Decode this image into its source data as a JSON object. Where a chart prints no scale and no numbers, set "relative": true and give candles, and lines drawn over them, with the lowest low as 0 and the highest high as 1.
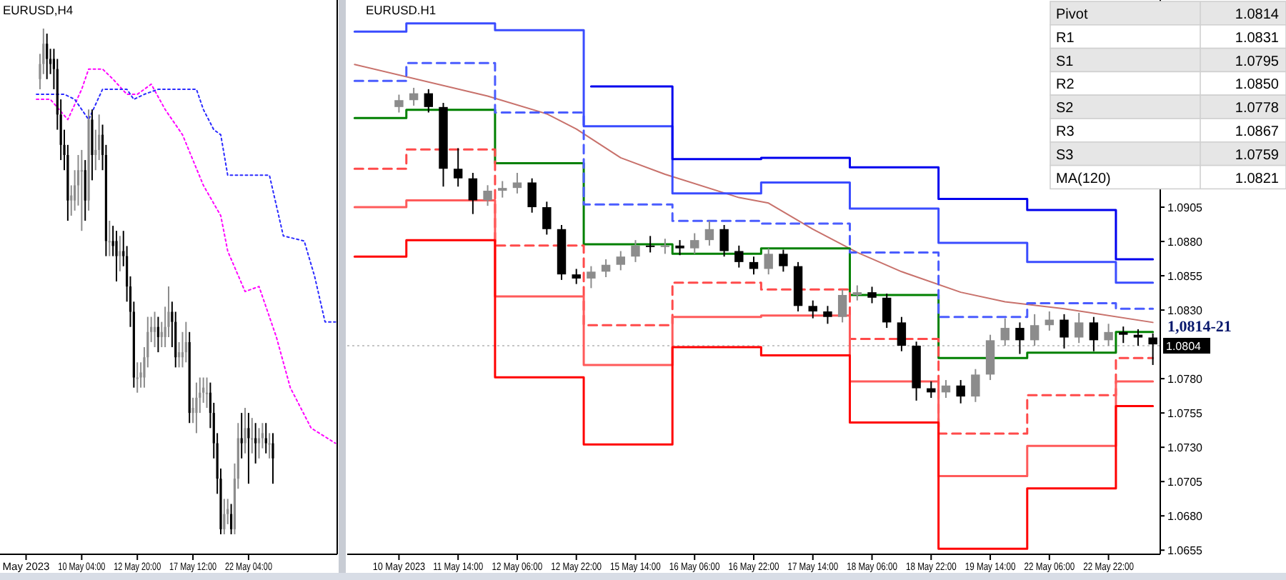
{
  "chart_data": [
    {
      "type": "candlestick",
      "title": "EURUSD,H4",
      "relative": true,
      "tick_labels": "x",
      "categories": [
        null,
        null,
        null,
        null,
        null,
        null,
        null,
        "May 2023",
        null,
        null,
        null,
        null,
        null,
        null,
        null,
        null,
        null,
        null,
        null,
        null,
        null,
        null,
        null,
        "10 May 04:00",
        null,
        null,
        null,
        null,
        null,
        null,
        null,
        null,
        null,
        null,
        null,
        null,
        null,
        null,
        null,
        "12 May 20:00",
        null,
        null,
        null,
        null,
        null,
        null,
        null,
        null,
        null,
        null,
        null,
        null,
        null,
        null,
        null,
        "17 May 12:00",
        null,
        null,
        null,
        null,
        null,
        null,
        null,
        null,
        null,
        null,
        null,
        null,
        null,
        null,
        null,
        "22 May 04:00",
        null,
        null,
        null,
        null,
        null,
        null,
        null,
        null,
        null,
        null,
        null,
        null,
        null,
        null,
        null,
        null,
        null,
        null,
        null,
        null,
        null,
        null,
        null,
        null,
        null
      ],
      "ohlc": [
        null,
        null,
        null,
        null,
        null,
        null,
        null,
        null,
        null,
        null,
        null,
        [
          0.9,
          0.95,
          0.88,
          0.93
        ],
        [
          0.93,
          1.0,
          0.91,
          0.97
        ],
        [
          0.97,
          0.99,
          0.9,
          0.94
        ],
        [
          0.94,
          0.96,
          0.91,
          0.93
        ],
        [
          0.94,
          0.96,
          0.88,
          0.92
        ],
        [
          0.92,
          0.94,
          0.8,
          0.83
        ],
        [
          0.83,
          0.86,
          0.74,
          0.77
        ],
        [
          0.77,
          0.8,
          0.72,
          0.75
        ],
        [
          0.75,
          0.77,
          0.62,
          0.66
        ],
        [
          0.66,
          0.69,
          0.63,
          0.67
        ],
        [
          0.66,
          0.72,
          0.64,
          0.69
        ],
        [
          0.69,
          0.75,
          0.65,
          0.72
        ],
        [
          0.72,
          0.76,
          0.6,
          0.72
        ],
        [
          0.72,
          0.74,
          0.62,
          0.66
        ],
        [
          0.66,
          0.84,
          0.64,
          0.82
        ],
        [
          0.82,
          0.84,
          0.7,
          0.75
        ],
        [
          0.75,
          0.8,
          0.72,
          0.76
        ],
        [
          0.76,
          0.83,
          0.74,
          0.79
        ],
        [
          0.79,
          0.81,
          0.72,
          0.75
        ],
        [
          0.75,
          0.77,
          0.55,
          0.58
        ],
        [
          0.58,
          0.62,
          0.55,
          0.58
        ],
        [
          0.58,
          0.61,
          0.55,
          0.57
        ],
        [
          0.58,
          0.6,
          0.5,
          0.55
        ],
        [
          0.55,
          0.59,
          0.52,
          0.56
        ],
        [
          0.56,
          0.6,
          0.53,
          0.55
        ],
        [
          0.55,
          0.57,
          0.46,
          0.49
        ],
        [
          0.49,
          0.51,
          0.41,
          0.44
        ],
        [
          0.44,
          0.46,
          0.29,
          0.31
        ],
        [
          0.31,
          0.34,
          0.28,
          0.31
        ],
        [
          0.31,
          0.34,
          0.29,
          0.32
        ],
        [
          0.31,
          0.37,
          0.29,
          0.35
        ],
        [
          0.35,
          0.43,
          0.33,
          0.4
        ],
        [
          0.4,
          0.43,
          0.38,
          0.41
        ],
        [
          0.4,
          0.44,
          0.37,
          0.41
        ],
        [
          0.41,
          0.43,
          0.36,
          0.39
        ],
        [
          0.39,
          0.42,
          0.37,
          0.4
        ],
        [
          0.39,
          0.45,
          0.37,
          0.41
        ],
        [
          0.41,
          0.49,
          0.39,
          0.44
        ],
        [
          0.44,
          0.46,
          0.37,
          0.42
        ],
        [
          0.42,
          0.44,
          0.33,
          0.35
        ],
        [
          0.35,
          0.38,
          0.33,
          0.36
        ],
        [
          0.35,
          0.4,
          0.33,
          0.36
        ],
        [
          0.36,
          0.42,
          0.34,
          0.38
        ],
        [
          0.38,
          0.4,
          0.22,
          0.24
        ],
        [
          0.24,
          0.27,
          0.22,
          0.25
        ],
        [
          0.24,
          0.3,
          0.2,
          0.27
        ],
        [
          0.27,
          0.31,
          0.24,
          0.28
        ],
        [
          0.28,
          0.31,
          0.26,
          0.29
        ],
        [
          0.28,
          0.31,
          0.25,
          0.28
        ],
        [
          0.28,
          0.3,
          0.21,
          0.24
        ],
        [
          0.24,
          0.26,
          0.15,
          0.18
        ],
        [
          0.18,
          0.2,
          0.08,
          0.11
        ],
        [
          0.11,
          0.13,
          0.0,
          0.01
        ],
        [
          0.01,
          0.07,
          0.0,
          0.04
        ],
        [
          0.04,
          0.07,
          0.02,
          0.05
        ],
        [
          0.04,
          0.06,
          0.0,
          0.01
        ],
        [
          0.01,
          0.14,
          0.0,
          0.11
        ],
        [
          0.11,
          0.22,
          0.09,
          0.19
        ],
        [
          0.19,
          0.24,
          0.15,
          0.18
        ],
        [
          0.18,
          0.25,
          0.16,
          0.21
        ],
        [
          0.21,
          0.24,
          0.1,
          0.19
        ],
        [
          0.19,
          0.23,
          0.16,
          0.19
        ],
        [
          0.19,
          0.22,
          0.14,
          0.18
        ],
        [
          0.18,
          0.21,
          0.15,
          0.19
        ],
        [
          0.19,
          0.22,
          0.17,
          0.2
        ],
        [
          0.19,
          0.22,
          0.16,
          0.18
        ],
        [
          0.18,
          0.2,
          0.15,
          0.18
        ],
        [
          0.18,
          0.2,
          0.1,
          0.15
        ],
        null,
        null,
        null,
        null,
        null,
        null,
        null,
        null,
        null,
        null,
        null,
        null,
        null,
        null,
        null,
        null,
        null,
        null
      ],
      "series": [
        {
          "type": "line",
          "color": "#ff00ff",
          "line_style": "dotted",
          "values": [
            null,
            null,
            null,
            null,
            null,
            null,
            null,
            null,
            null,
            null,
            0.86,
            null,
            null,
            null,
            0.86,
            null,
            null,
            null,
            null,
            0.82,
            null,
            null,
            null,
            0.88,
            null,
            0.92,
            null,
            null,
            null,
            0.92,
            null,
            null,
            0.9,
            null,
            null,
            null,
            0.87,
            null,
            null,
            0.87,
            null,
            null,
            null,
            0.89,
            null,
            null,
            null,
            0.84,
            null,
            null,
            null,
            null,
            0.79,
            null,
            null,
            null,
            null,
            null,
            0.69,
            null,
            null,
            null,
            null,
            0.63,
            null,
            0.56,
            null,
            null,
            null,
            null,
            0.48,
            null,
            null,
            null,
            0.49,
            null,
            null,
            null,
            null,
            0.39,
            null,
            null,
            null,
            0.29,
            null,
            null,
            null,
            null,
            null,
            0.21,
            null,
            null,
            null,
            null,
            null,
            null,
            0.18
          ]
        },
        {
          "type": "line",
          "color": "#2a2aff",
          "line_style": "dotted",
          "values": [
            null,
            null,
            null,
            null,
            null,
            null,
            null,
            null,
            null,
            null,
            0.87,
            null,
            null,
            null,
            null,
            null,
            null,
            null,
            0.87,
            null,
            null,
            0.86,
            null,
            0.84,
            null,
            0.82,
            null,
            null,
            null,
            0.88,
            null,
            null,
            null,
            null,
            null,
            null,
            0.88,
            null,
            0.86,
            null,
            null,
            0.87,
            null,
            null,
            null,
            0.88,
            null,
            null,
            null,
            null,
            null,
            null,
            null,
            null,
            null,
            null,
            0.88,
            null,
            0.84,
            null,
            null,
            0.8,
            null,
            0.79,
            null,
            0.71,
            null,
            null,
            null,
            null,
            null,
            null,
            null,
            null,
            null,
            null,
            null,
            0.71,
            null,
            null,
            null,
            0.59,
            null,
            null,
            null,
            null,
            null,
            0.58,
            null,
            null,
            0.51,
            null,
            null,
            0.42,
            null,
            null,
            0.42
          ]
        }
      ]
    },
    {
      "type": "candlestick",
      "title": "EURUSD.H1",
      "ylim": [
        1.0652,
        1.1056
      ],
      "categories": [
        null,
        null,
        null,
        "10 May 2023",
        null,
        null,
        null,
        "11 May 14:00",
        null,
        null,
        null,
        "12 May 06:00",
        null,
        null,
        null,
        "12 May 22:00",
        null,
        null,
        null,
        "15 May 14:00",
        null,
        null,
        null,
        "16 May 06:00",
        null,
        null,
        null,
        "16 May 22:00",
        null,
        null,
        null,
        "17 May 14:00",
        null,
        null,
        null,
        "18 May 06:00",
        null,
        null,
        null,
        "18 May 22:00",
        null,
        null,
        null,
        "19 May 14:00",
        null,
        null,
        null,
        "22 May 06:00",
        null,
        null,
        null,
        "22 May 22:00",
        null,
        null,
        null
      ],
      "yticks": [
        1.0655,
        {
          "value": 1.068,
          "label": "1.0680"
        },
        1.0705,
        {
          "value": 1.073,
          "label": "1.0730"
        },
        1.0755,
        {
          "value": 1.078,
          "label": "1.0780"
        },
        {
          "value": 1.083,
          "label": "1.0830"
        },
        1.0855,
        {
          "value": 1.088,
          "label": "1.0880"
        },
        1.0905
      ],
      "ref_lines": [
        {
          "axis": "y",
          "value": 1.0804,
          "label": "1.0804",
          "color": "#b4b4b4",
          "line_style": "dotted"
        }
      ],
      "ohlc": [
        null,
        null,
        null,
        [
          1.0978,
          1.0987,
          1.0974,
          1.0983
        ],
        [
          1.0983,
          1.0992,
          1.0979,
          1.0988
        ],
        [
          1.0988,
          1.0991,
          1.0974,
          1.0978
        ],
        [
          1.0978,
          1.0981,
          1.092,
          1.0933
        ],
        [
          1.0933,
          1.0948,
          1.092,
          1.0926
        ],
        [
          1.0926,
          1.093,
          1.09,
          1.091
        ],
        [
          1.091,
          1.0921,
          1.0906,
          1.0917
        ],
        [
          1.0917,
          1.0924,
          1.0912,
          1.0919
        ],
        [
          1.0919,
          1.093,
          1.0915,
          1.0923
        ],
        [
          1.0923,
          1.0926,
          1.0901,
          1.0905
        ],
        [
          1.0905,
          1.0909,
          1.0885,
          1.0889
        ],
        [
          1.0889,
          1.0892,
          1.0852,
          1.0856
        ],
        [
          1.0856,
          1.086,
          1.0849,
          1.0853
        ],
        [
          1.0853,
          1.0862,
          1.0846,
          1.0858
        ],
        [
          1.0858,
          1.0867,
          1.0854,
          1.0863
        ],
        [
          1.0863,
          1.0873,
          1.0859,
          1.0869
        ],
        [
          1.0869,
          1.0881,
          1.0865,
          1.0877
        ],
        [
          1.0877,
          1.0884,
          1.0872,
          1.0876
        ],
        [
          1.0876,
          1.0882,
          1.0871,
          1.0877
        ],
        [
          1.0877,
          1.0881,
          1.087,
          1.0875
        ],
        [
          1.0875,
          1.0886,
          1.0871,
          1.0881
        ],
        [
          1.0881,
          1.0895,
          1.0877,
          1.0889
        ],
        [
          1.0889,
          1.0892,
          1.0869,
          1.0873
        ],
        [
          1.0873,
          1.0877,
          1.0861,
          1.0865
        ],
        [
          1.0865,
          1.0869,
          1.0856,
          1.086
        ],
        [
          1.086,
          1.0875,
          1.0856,
          1.0871
        ],
        [
          1.0871,
          1.0874,
          1.0858,
          1.0862
        ],
        [
          1.0862,
          1.0865,
          1.0829,
          1.0833
        ],
        [
          1.0833,
          1.0837,
          1.0824,
          1.0829
        ],
        [
          1.0829,
          1.0833,
          1.082,
          1.0825
        ],
        [
          1.0825,
          1.0845,
          1.0821,
          1.0841
        ],
        [
          1.0841,
          1.0848,
          1.0837,
          1.0843
        ],
        [
          1.0843,
          1.0847,
          1.0835,
          1.0839
        ],
        [
          1.0839,
          1.0842,
          1.0817,
          1.0821
        ],
        [
          1.0821,
          1.0825,
          1.08,
          1.0804
        ],
        [
          1.0804,
          1.0807,
          1.0764,
          1.0773
        ],
        [
          1.0773,
          1.0778,
          1.0766,
          1.077
        ],
        [
          1.077,
          1.0779,
          1.0766,
          1.0775
        ],
        [
          1.0775,
          1.0779,
          1.0762,
          1.0767
        ],
        [
          1.0767,
          1.0787,
          1.0763,
          1.0783
        ],
        [
          1.0783,
          1.0812,
          1.0779,
          1.0808
        ],
        [
          1.0808,
          1.0824,
          1.0804,
          1.0817
        ],
        [
          1.0817,
          1.0821,
          1.0798,
          1.0808
        ],
        [
          1.0808,
          1.0827,
          1.0804,
          1.0819
        ],
        [
          1.0819,
          1.0829,
          1.0815,
          1.0823
        ],
        [
          1.0823,
          1.0827,
          1.0802,
          1.081
        ],
        [
          1.081,
          1.0828,
          1.0806,
          1.0821
        ],
        [
          1.0821,
          1.0825,
          1.08,
          1.0808
        ],
        [
          1.0808,
          1.082,
          1.0804,
          1.0814
        ],
        [
          1.0814,
          1.0818,
          1.0806,
          1.0812
        ],
        [
          1.0812,
          1.0816,
          1.0804,
          1.081
        ],
        [
          1.081,
          1.0813,
          1.079,
          1.0805
        ]
      ],
      "series": [
        {
          "type": "line",
          "color": "#c8716b",
          "values": [
            1.1009,
            null,
            null,
            null,
            null,
            null,
            null,
            null,
            null,
            1.0986,
            null,
            null,
            null,
            1.0973,
            null,
            1.0962,
            null,
            null,
            1.0941,
            null,
            null,
            1.0929,
            null,
            null,
            null,
            null,
            1.0912,
            null,
            1.0908,
            null,
            null,
            1.0889,
            null,
            null,
            1.0872,
            null,
            null,
            1.0858,
            null,
            null,
            null,
            1.0843,
            null,
            null,
            1.0836,
            null,
            null,
            null,
            1.0831,
            null,
            null,
            null,
            null,
            null,
            1.0821
          ]
        },
        {
          "type": "step",
          "color": "#008000",
          "values": [
            1.097,
            1.097,
            1.097,
            1.097,
            1.0976,
            1.0976,
            1.0976,
            1.0976,
            1.0976,
            1.0976,
            1.0937,
            1.0937,
            1.0937,
            1.0937,
            1.0937,
            1.0937,
            1.0878,
            1.0878,
            1.0878,
            1.0878,
            1.0878,
            1.0878,
            1.0871,
            1.0871,
            1.0871,
            1.0871,
            1.0871,
            1.0871,
            1.0875,
            1.0875,
            1.0875,
            1.0875,
            1.0875,
            1.0875,
            1.0841,
            1.0841,
            1.0841,
            1.0841,
            1.0841,
            1.0841,
            1.0795,
            1.0795,
            1.0795,
            1.0795,
            1.0795,
            1.0795,
            1.0799,
            1.0799,
            1.0799,
            1.0799,
            1.0799,
            1.0799,
            1.0814,
            1.0814,
            1.0814
          ]
        },
        {
          "type": "step",
          "color": "#4a5cff",
          "line_style": "dashed",
          "values": [
            1.0997,
            1.0997,
            1.0997,
            1.0997,
            1.101,
            1.101,
            1.101,
            1.101,
            1.101,
            1.101,
            1.0974,
            1.0974,
            1.0974,
            1.0974,
            1.0974,
            1.0974,
            1.0907,
            1.0907,
            1.0907,
            1.0907,
            1.0907,
            1.0907,
            1.0895,
            1.0895,
            1.0895,
            1.0895,
            1.0895,
            1.0895,
            1.0893,
            1.0893,
            1.0893,
            1.0893,
            1.0893,
            1.0893,
            1.0872,
            1.0872,
            1.0872,
            1.0872,
            1.0872,
            1.0872,
            1.0825,
            1.0825,
            1.0825,
            1.0825,
            1.0825,
            1.0825,
            1.0835,
            1.0835,
            1.0835,
            1.0835,
            1.0835,
            1.0835,
            1.0831,
            1.0831,
            1.0831
          ]
        },
        {
          "type": "step",
          "color": "#ff4a4a",
          "line_style": "dashed",
          "values": [
            1.0933,
            1.0933,
            1.0933,
            1.0933,
            1.0947,
            1.0947,
            1.0947,
            1.0947,
            1.0947,
            1.0947,
            1.0877,
            1.0877,
            1.0877,
            1.0877,
            1.0877,
            1.0877,
            1.0819,
            1.0819,
            1.0819,
            1.0819,
            1.0819,
            1.0819,
            1.085,
            1.085,
            1.085,
            1.085,
            1.085,
            1.085,
            1.0845,
            1.0845,
            1.0845,
            1.0845,
            1.0845,
            1.0845,
            1.0809,
            1.0809,
            1.0809,
            1.0809,
            1.0809,
            1.0809,
            1.074,
            1.074,
            1.074,
            1.074,
            1.074,
            1.074,
            1.0768,
            1.0768,
            1.0768,
            1.0768,
            1.0768,
            1.0768,
            1.0795,
            1.0795,
            1.0795
          ]
        },
        {
          "type": "step",
          "color": "#3a4cff",
          "values": [
            1.1033,
            1.1033,
            1.1033,
            1.1033,
            1.1039,
            1.1039,
            1.1039,
            1.1039,
            1.1039,
            1.1039,
            1.1034,
            1.1034,
            1.1034,
            1.1034,
            1.1034,
            1.1034,
            1.0964,
            1.0964,
            1.0964,
            1.0964,
            1.0964,
            1.0964,
            1.0915,
            1.0915,
            1.0915,
            1.0915,
            1.0915,
            1.0915,
            1.0923,
            1.0923,
            1.0923,
            1.0923,
            1.0923,
            1.0923,
            1.0904,
            1.0904,
            1.0904,
            1.0904,
            1.0904,
            1.0904,
            1.0879,
            1.0879,
            1.0879,
            1.0879,
            1.0879,
            1.0879,
            1.0865,
            1.0865,
            1.0865,
            1.0865,
            1.0865,
            1.0865,
            1.085,
            1.085,
            1.085
          ]
        },
        {
          "type": "step",
          "color": "#ff5a5a",
          "values": [
            1.0905,
            1.0905,
            1.0905,
            1.0905,
            1.091,
            1.091,
            1.091,
            1.091,
            1.091,
            1.091,
            1.084,
            1.084,
            1.084,
            1.084,
            1.084,
            1.084,
            1.079,
            1.079,
            1.079,
            1.079,
            1.079,
            1.079,
            1.0825,
            1.0825,
            1.0825,
            1.0825,
            1.0825,
            1.0825,
            1.0826,
            1.0826,
            1.0826,
            1.0826,
            1.0826,
            1.0826,
            1.0778,
            1.0778,
            1.0778,
            1.0778,
            1.0778,
            1.0778,
            1.0709,
            1.0709,
            1.0709,
            1.0709,
            1.0709,
            1.0709,
            1.0731,
            1.0731,
            1.0731,
            1.0731,
            1.0731,
            1.0731,
            1.0778,
            1.0778,
            1.0778
          ]
        },
        {
          "type": "step",
          "color": "#0000ee",
          "values": [
            null,
            null,
            null,
            null,
            null,
            null,
            null,
            null,
            null,
            null,
            null,
            null,
            null,
            null,
            null,
            null,
            1.0993,
            1.0993,
            1.0993,
            1.0993,
            1.0993,
            1.0993,
            1.094,
            1.094,
            1.094,
            1.094,
            1.094,
            1.094,
            1.0941,
            1.0941,
            1.0941,
            1.0941,
            1.0941,
            1.0941,
            1.0934,
            1.0934,
            1.0934,
            1.0934,
            1.0934,
            1.0934,
            1.0911,
            1.0911,
            1.0911,
            1.0911,
            1.0911,
            1.0911,
            1.0903,
            1.0903,
            1.0903,
            1.0903,
            1.0903,
            1.0903,
            1.0867,
            1.0867,
            1.0867
          ]
        },
        {
          "type": "step",
          "color": "#ff0000",
          "values": [
            1.0869,
            1.0869,
            1.0869,
            1.0869,
            1.0881,
            1.0881,
            1.0881,
            1.0881,
            1.0881,
            1.0881,
            1.0781,
            1.0781,
            1.0781,
            1.0781,
            1.0781,
            1.0781,
            1.0732,
            1.0732,
            1.0732,
            1.0732,
            1.0732,
            1.0732,
            1.0803,
            1.0803,
            1.0803,
            1.0803,
            1.0803,
            1.0803,
            1.0797,
            1.0797,
            1.0797,
            1.0797,
            1.0797,
            1.0797,
            1.0748,
            1.0748,
            1.0748,
            1.0748,
            1.0748,
            1.0748,
            1.0656,
            1.0656,
            1.0656,
            1.0656,
            1.0656,
            1.0656,
            1.07,
            1.07,
            1.07,
            1.07,
            1.07,
            1.07,
            1.076,
            1.076,
            1.076
          ]
        }
      ],
      "annotations": [
        "1,0814-21",
        "Pivot",
        "1.0814",
        "R1",
        "1.0831",
        "S1",
        "1.0795",
        "R2",
        "1.0850",
        "S2",
        "1.0778",
        "R3",
        "1.0867",
        "S3",
        "1.0759",
        "MA(120)",
        "1.0821"
      ]
    }
  ]
}
